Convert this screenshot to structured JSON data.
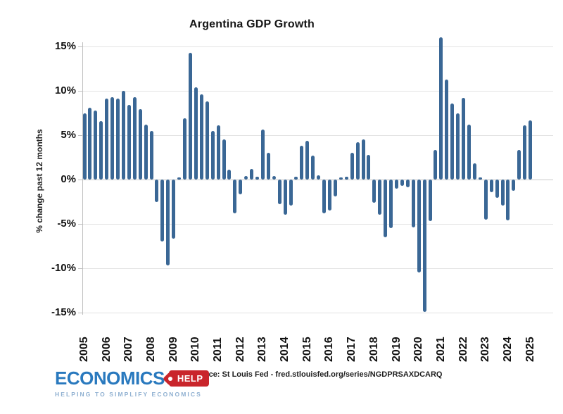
{
  "title": "Argentina GDP Growth",
  "y_axis": {
    "label": "% change past 12 months",
    "ticks": [
      "15%",
      "10%",
      "5%",
      "0%",
      "-5%",
      "-10%",
      "-15%"
    ],
    "tick_values": [
      15,
      10,
      5,
      0,
      -5,
      -10,
      -15
    ]
  },
  "x_year_labels": [
    "2005",
    "2006",
    "2007",
    "2008",
    "2009",
    "2010",
    "2011",
    "2012",
    "2013",
    "2014",
    "2015",
    "2016",
    "2017",
    "2018",
    "2019",
    "2020",
    "2021",
    "2022",
    "2023",
    "2024",
    "2025"
  ],
  "source": "Source: St Louis Fed - fred.stlouisfed.org/series/NGDPRSAXDCARQ",
  "logo": {
    "brand": "ECONOMICS",
    "tag": "HELP",
    "tagline": "HELPING TO SIMPLIFY ECONOMICS"
  },
  "colors": {
    "bar": "#3A6795",
    "grid": "#E3E3E3",
    "axis": "#BFBFBF",
    "logo_blue": "#2979BE",
    "logo_red": "#C9252B",
    "logo_light_blue": "#8FB0D1"
  },
  "chart_data": {
    "type": "bar",
    "title": "Argentina GDP Growth",
    "xlabel": "",
    "ylabel": "% change past 12 months",
    "ylim": [
      -15,
      15
    ],
    "grid": true,
    "legend": false,
    "x": [
      "2005 Q1",
      "2005 Q2",
      "2005 Q3",
      "2005 Q4",
      "2006 Q1",
      "2006 Q2",
      "2006 Q3",
      "2006 Q4",
      "2007 Q1",
      "2007 Q2",
      "2007 Q3",
      "2007 Q4",
      "2008 Q1",
      "2008 Q2",
      "2008 Q3",
      "2008 Q4",
      "2009 Q1",
      "2009 Q2",
      "2009 Q3",
      "2009 Q4",
      "2010 Q1",
      "2010 Q2",
      "2010 Q3",
      "2010 Q4",
      "2011 Q1",
      "2011 Q2",
      "2011 Q3",
      "2011 Q4",
      "2012 Q1",
      "2012 Q2",
      "2012 Q3",
      "2012 Q4",
      "2013 Q1",
      "2013 Q2",
      "2013 Q3",
      "2013 Q4",
      "2014 Q1",
      "2014 Q2",
      "2014 Q3",
      "2014 Q4",
      "2015 Q1",
      "2015 Q2",
      "2015 Q3",
      "2015 Q4",
      "2016 Q1",
      "2016 Q2",
      "2016 Q3",
      "2016 Q4",
      "2017 Q1",
      "2017 Q2",
      "2017 Q3",
      "2017 Q4",
      "2018 Q1",
      "2018 Q2",
      "2018 Q3",
      "2018 Q4",
      "2019 Q1",
      "2019 Q2",
      "2019 Q3",
      "2019 Q4",
      "2020 Q1",
      "2020 Q2",
      "2020 Q3",
      "2020 Q4",
      "2021 Q1",
      "2021 Q2",
      "2021 Q3",
      "2021 Q4",
      "2022 Q1",
      "2022 Q2",
      "2022 Q3",
      "2022 Q4",
      "2023 Q1",
      "2023 Q2",
      "2023 Q3",
      "2023 Q4",
      "2024 Q1",
      "2024 Q2",
      "2024 Q3",
      "2024 Q4",
      "2025 Q1"
    ],
    "values": [
      7.5,
      8.1,
      7.8,
      6.6,
      9.1,
      9.3,
      9.1,
      10.0,
      8.4,
      9.3,
      7.9,
      6.2,
      5.5,
      -2.5,
      -7.0,
      -9.7,
      -6.7,
      0.2,
      6.9,
      14.3,
      10.4,
      9.6,
      8.8,
      5.5,
      6.1,
      4.5,
      1.1,
      -3.8,
      -1.7,
      0.4,
      1.2,
      0.3,
      5.6,
      3.0,
      0.4,
      -2.8,
      -4.0,
      -2.9,
      0.3,
      3.8,
      4.4,
      2.7,
      0.5,
      -3.8,
      -3.5,
      -1.9,
      0.2,
      0.3,
      3.0,
      4.2,
      4.5,
      2.8,
      -2.6,
      -4.0,
      -6.5,
      -5.5,
      -1.0,
      -0.7,
      -0.9,
      -5.4,
      -10.5,
      -14.9,
      -4.7,
      3.3,
      16.0,
      11.3,
      8.6,
      7.5,
      9.2,
      6.2,
      1.8,
      0.2,
      -4.5,
      -1.4,
      -2.1,
      -2.9,
      -4.6,
      -1.3,
      3.3,
      6.1,
      6.7
    ]
  }
}
